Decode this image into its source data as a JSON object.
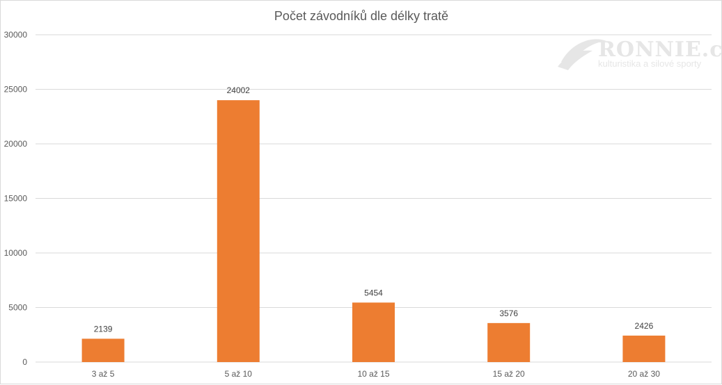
{
  "chart_data": {
    "type": "bar",
    "title": "Počet závodníků dle délky tratě",
    "categories": [
      "3 až 5",
      "5 až 10",
      "10 až 15",
      "15 až 20",
      "20 až 30"
    ],
    "values": [
      2139,
      24002,
      5454,
      3576,
      2426
    ],
    "ylim": [
      0,
      30000
    ],
    "yticks": [
      0,
      5000,
      10000,
      15000,
      20000,
      25000,
      30000
    ],
    "grid": true,
    "bar_color": "#ED7D31",
    "data_labels": true
  },
  "watermark": {
    "logo": "RONNIE.cz",
    "tagline": "kulturistika a silové sporty"
  }
}
